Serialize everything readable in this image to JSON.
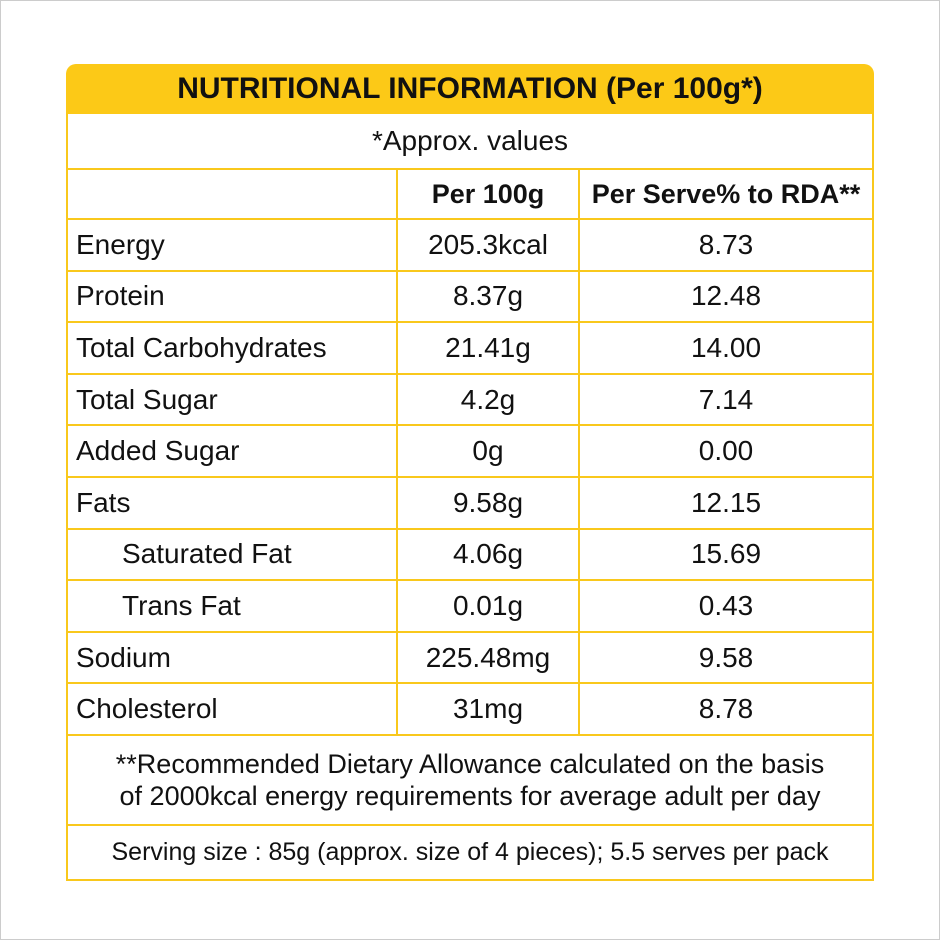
{
  "title": "NUTRITIONAL INFORMATION (Per 100g*)",
  "approx": "*Approx. values",
  "headers": [
    "",
    "Per 100g",
    "Per Serve% to RDA**"
  ],
  "rows": [
    {
      "name": "Energy",
      "per100": "205.3kcal",
      "rda": "8.73"
    },
    {
      "name": "Protein",
      "per100": "8.37g",
      "rda": "12.48"
    },
    {
      "name": "Total Carbohydrates",
      "per100": "21.41g",
      "rda": "14.00"
    },
    {
      "name": "Total Sugar",
      "per100": "4.2g",
      "rda": "7.14"
    },
    {
      "name": "Added Sugar",
      "per100": "0g",
      "rda": "0.00"
    },
    {
      "name": "Fats",
      "per100": "9.58g",
      "rda": "12.15"
    },
    {
      "name": "Saturated Fat",
      "per100": "4.06g",
      "rda": "15.69"
    },
    {
      "name": "Trans Fat",
      "per100": "0.01g",
      "rda": "0.43"
    },
    {
      "name": "Sodium",
      "per100": "225.48mg",
      "rda": "9.58"
    },
    {
      "name": "Cholesterol",
      "per100": "31mg",
      "rda": "8.78"
    }
  ],
  "footnote": [
    "**Recommended Dietary Allowance calculated on the basis",
    "of 2000kcal energy requirements for average adult per day"
  ],
  "serving": "Serving size : 85g (approx. size of 4 pieces); 5.5 serves per pack",
  "colors": {
    "accent": "#fcc917"
  }
}
